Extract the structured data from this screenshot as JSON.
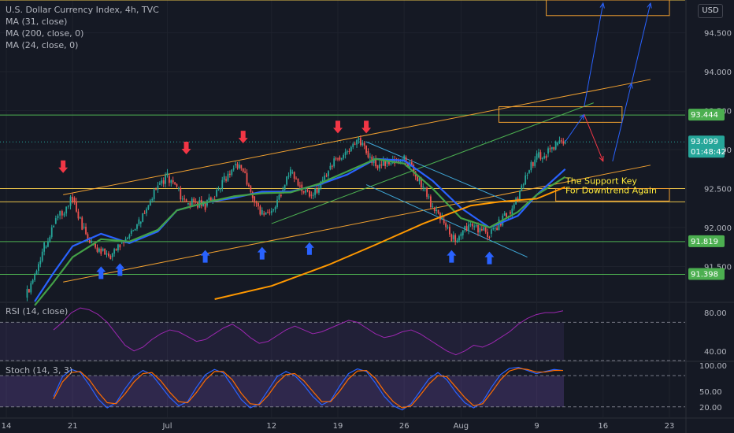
{
  "header": {
    "symbol_title": "U.S. Dollar Currency Index, 4h, TVC",
    "indicators": [
      "MA (31, close)",
      "MA (200, close, 0)",
      "MA (24, close, 0)"
    ],
    "currency_button": "USD"
  },
  "annotation": {
    "line1": "The Support Key",
    "line2": "For Downtrend Again"
  },
  "rsi_label": "RSI (14, close)",
  "stoch_label": "Stoch (14, 3, 3)",
  "colors": {
    "background": "#151924",
    "grid": "#1e222d",
    "up": "#26a69a",
    "down": "#ef5350",
    "ma31": "#2962ff",
    "ma24": "#43a047",
    "ma200": "#ff9800",
    "channel": "#f0a030",
    "level_line": "#4caf50",
    "current_price": "#26a69a",
    "rsi": "#9c27b0",
    "stoch_k": "#2962ff",
    "stoch_d": "#ff6d00",
    "annotation_text": "#ffeb3b",
    "arrow_up": "#2962ff",
    "arrow_down": "#f23645"
  },
  "chart_data": [
    {
      "type": "candlestick",
      "title": "U.S. Dollar Currency Index, 4h, TVC",
      "x_tick_labels": [
        "14",
        "21",
        "Jul",
        "12",
        "19",
        "26",
        "Aug",
        "9",
        "16",
        "23"
      ],
      "y_tick_labels": [
        "91.500",
        "92.000",
        "92.500",
        "93.000",
        "93.500",
        "94.000",
        "94.500"
      ],
      "ylim": [
        91.05,
        94.92
      ],
      "price_labels": [
        {
          "value": 93.444,
          "text": "93.444"
        },
        {
          "value": 91.819,
          "text": "91.819"
        },
        {
          "value": 91.398,
          "text": "91.398"
        }
      ],
      "current_price": {
        "value": 93.099,
        "text": "93.099",
        "countdown": "01:48:42"
      },
      "horizontal_levels": [
        94.92,
        93.444,
        92.5,
        92.33,
        91.819,
        91.398
      ],
      "price_path": [
        [
          "06-16",
          91.1
        ],
        [
          "06-17",
          91.4
        ],
        [
          "06-18",
          91.75
        ],
        [
          "06-19",
          92.05
        ],
        [
          "06-21",
          92.38
        ],
        [
          "06-22",
          92.0
        ],
        [
          "06-23",
          91.78
        ],
        [
          "06-24",
          91.7
        ],
        [
          "06-25",
          91.62
        ],
        [
          "06-26",
          91.8
        ],
        [
          "06-27",
          91.92
        ],
        [
          "06-28",
          92.05
        ],
        [
          "06-29",
          92.28
        ],
        [
          "06-30",
          92.55
        ],
        [
          "07-01",
          92.66
        ],
        [
          "07-02",
          92.5
        ],
        [
          "07-03",
          92.3
        ],
        [
          "07-04",
          92.32
        ],
        [
          "07-05",
          92.28
        ],
        [
          "07-06",
          92.4
        ],
        [
          "07-07",
          92.62
        ],
        [
          "07-08",
          92.8
        ],
        [
          "07-09",
          92.72
        ],
        [
          "07-10",
          92.4
        ],
        [
          "07-11",
          92.18
        ],
        [
          "07-12",
          92.22
        ],
        [
          "07-13",
          92.45
        ],
        [
          "07-14",
          92.7
        ],
        [
          "07-15",
          92.55
        ],
        [
          "07-16",
          92.42
        ],
        [
          "07-17",
          92.5
        ],
        [
          "07-18",
          92.75
        ],
        [
          "07-19",
          92.9
        ],
        [
          "07-20",
          92.98
        ],
        [
          "07-21",
          93.12
        ],
        [
          "07-22",
          92.98
        ],
        [
          "07-23",
          92.8
        ],
        [
          "07-24",
          92.82
        ],
        [
          "07-25",
          92.88
        ],
        [
          "07-26",
          92.9
        ],
        [
          "07-27",
          92.72
        ],
        [
          "07-28",
          92.5
        ],
        [
          "07-29",
          92.25
        ],
        [
          "07-30",
          92.1
        ],
        [
          "07-31",
          91.85
        ],
        [
          "08-01",
          91.9
        ],
        [
          "08-02",
          92.05
        ],
        [
          "08-03",
          91.98
        ],
        [
          "08-04",
          91.92
        ],
        [
          "08-05",
          92.05
        ],
        [
          "08-06",
          92.2
        ],
        [
          "08-07",
          92.35
        ],
        [
          "08-08",
          92.7
        ],
        [
          "08-09",
          92.9
        ],
        [
          "08-10",
          92.95
        ],
        [
          "08-11",
          93.06
        ],
        [
          "08-12",
          93.1
        ]
      ],
      "series": [
        {
          "name": "MA (31, close)",
          "color": "#2962ff",
          "points": [
            [
              "06-17",
              91.05
            ],
            [
              "06-19",
              91.42
            ],
            [
              "06-21",
              91.76
            ],
            [
              "06-24",
              91.92
            ],
            [
              "06-27",
              91.8
            ],
            [
              "06-30",
              91.95
            ],
            [
              "07-02",
              92.22
            ],
            [
              "07-05",
              92.32
            ],
            [
              "07-08",
              92.38
            ],
            [
              "07-11",
              92.46
            ],
            [
              "07-14",
              92.46
            ],
            [
              "07-17",
              92.55
            ],
            [
              "07-20",
              92.68
            ],
            [
              "07-23",
              92.88
            ],
            [
              "07-26",
              92.86
            ],
            [
              "07-29",
              92.6
            ],
            [
              "08-01",
              92.25
            ],
            [
              "08-04",
              92.0
            ],
            [
              "08-07",
              92.15
            ],
            [
              "08-09",
              92.42
            ],
            [
              "08-12",
              92.75
            ]
          ]
        },
        {
          "name": "MA (24, close, 0)",
          "color": "#43a047",
          "points": [
            [
              "06-17",
              91.0
            ],
            [
              "06-19",
              91.3
            ],
            [
              "06-21",
              91.62
            ],
            [
              "06-24",
              91.85
            ],
            [
              "06-27",
              91.82
            ],
            [
              "06-30",
              91.97
            ],
            [
              "07-02",
              92.22
            ],
            [
              "07-05",
              92.32
            ],
            [
              "07-08",
              92.4
            ],
            [
              "07-11",
              92.44
            ],
            [
              "07-14",
              92.45
            ],
            [
              "07-17",
              92.56
            ],
            [
              "07-20",
              92.72
            ],
            [
              "07-23",
              92.88
            ],
            [
              "07-26",
              92.82
            ],
            [
              "07-29",
              92.5
            ],
            [
              "08-01",
              92.12
            ],
            [
              "08-04",
              92.0
            ],
            [
              "08-07",
              92.2
            ],
            [
              "08-09",
              92.42
            ],
            [
              "08-12",
              92.65
            ]
          ]
        },
        {
          "name": "MA (200, close, 0)",
          "color": "#ff9800",
          "points": [
            [
              "07-06",
              91.08
            ],
            [
              "07-12",
              91.25
            ],
            [
              "07-18",
              91.52
            ],
            [
              "07-23",
              91.78
            ],
            [
              "07-28",
              92.05
            ],
            [
              "08-02",
              92.28
            ],
            [
              "08-05",
              92.33
            ],
            [
              "08-09",
              92.37
            ],
            [
              "08-12",
              92.52
            ]
          ]
        }
      ],
      "channel_lines": [
        {
          "from": [
            "06-20",
            92.42
          ],
          "to": [
            "08-21",
            93.9
          ]
        },
        {
          "from": [
            "06-20",
            91.3
          ],
          "to": [
            "08-21",
            92.8
          ]
        },
        {
          "from": [
            "07-12",
            92.05
          ],
          "to": [
            "08-15",
            93.6
          ]
        },
        {
          "from": [
            "07-22",
            93.1
          ],
          "to": [
            "08-06",
            92.33
          ]
        },
        {
          "from": [
            "07-22",
            92.55
          ],
          "to": [
            "08-08",
            91.62
          ]
        }
      ],
      "zones": [
        {
          "x0": "08-05",
          "x1": "08-18",
          "y0": 93.35,
          "y1": 93.55
        },
        {
          "x0": "08-10",
          "x1": "08-23",
          "y0": 94.72,
          "y1": 94.92
        },
        {
          "x0": "08-11",
          "x1": "08-23",
          "y0": 92.34,
          "y1": 92.5
        }
      ],
      "scenario_arrows": [
        {
          "from": [
            "08-14",
            93.55
          ],
          "to": [
            "08-16",
            94.88
          ],
          "color": "#2962ff"
        },
        {
          "from": [
            "08-12",
            93.1
          ],
          "to": [
            "08-14",
            93.45
          ],
          "color": "#2962ff"
        },
        {
          "from": [
            "08-14",
            93.45
          ],
          "to": [
            "08-16",
            92.85
          ],
          "color": "#f23645"
        },
        {
          "from": [
            "08-17",
            92.85
          ],
          "to": [
            "08-19",
            93.85
          ],
          "color": "#2962ff"
        },
        {
          "from": [
            "08-19",
            93.85
          ],
          "to": [
            "08-21",
            94.88
          ],
          "color": "#2962ff"
        }
      ],
      "signal_arrows_down": [
        [
          "06-20",
          92.78
        ],
        [
          "07-03",
          93.02
        ],
        [
          "07-09",
          93.16
        ],
        [
          "07-19",
          93.29
        ],
        [
          "07-22",
          93.29
        ]
      ],
      "signal_arrows_up": [
        [
          "06-24",
          91.42
        ],
        [
          "06-26",
          91.46
        ],
        [
          "07-05",
          91.63
        ],
        [
          "07-11",
          91.67
        ],
        [
          "07-16",
          91.73
        ],
        [
          "07-31",
          91.63
        ],
        [
          "08-04",
          91.61
        ]
      ]
    },
    {
      "type": "line",
      "title": "RSI (14, close)",
      "y_tick_labels": [
        "80.00",
        "40.00"
      ],
      "ylim": [
        30,
        90
      ],
      "bands": [
        70,
        30
      ],
      "values": [
        62,
        70,
        80,
        85,
        83,
        78,
        70,
        58,
        46,
        40,
        44,
        52,
        58,
        62,
        60,
        55,
        50,
        52,
        58,
        64,
        68,
        62,
        54,
        48,
        50,
        56,
        62,
        66,
        62,
        58,
        60,
        64,
        68,
        72,
        70,
        64,
        58,
        54,
        56,
        60,
        62,
        58,
        52,
        46,
        40,
        36,
        40,
        46,
        44,
        48,
        54,
        60,
        68,
        74,
        78,
        80,
        80,
        82
      ]
    },
    {
      "type": "line",
      "title": "Stoch (14, 3, 3)",
      "y_tick_labels": [
        "100.00",
        "50.00",
        "20.00"
      ],
      "ylim": [
        0,
        106
      ],
      "bands": [
        80,
        20
      ],
      "series": [
        {
          "name": "%K",
          "values": [
            40,
            78,
            92,
            86,
            62,
            35,
            18,
            28,
            55,
            78,
            90,
            82,
            60,
            38,
            22,
            30,
            58,
            82,
            92,
            85,
            60,
            34,
            18,
            26,
            52,
            78,
            88,
            80,
            62,
            40,
            24,
            32,
            60,
            84,
            93,
            88,
            66,
            40,
            22,
            14,
            26,
            50,
            74,
            86,
            72,
            48,
            28,
            18,
            30,
            58,
            82,
            94,
            96,
            90,
            84,
            88,
            92,
            90
          ]
        },
        {
          "name": "%D",
          "values": [
            35,
            68,
            86,
            88,
            72,
            48,
            28,
            26,
            45,
            68,
            84,
            86,
            70,
            48,
            30,
            28,
            48,
            72,
            88,
            88,
            72,
            46,
            26,
            24,
            42,
            66,
            82,
            84,
            70,
            50,
            30,
            30,
            50,
            74,
            89,
            90,
            75,
            50,
            30,
            18,
            22,
            42,
            64,
            80,
            78,
            58,
            38,
            22,
            26,
            48,
            72,
            89,
            94,
            92,
            87,
            87,
            90,
            90
          ]
        }
      ]
    }
  ]
}
